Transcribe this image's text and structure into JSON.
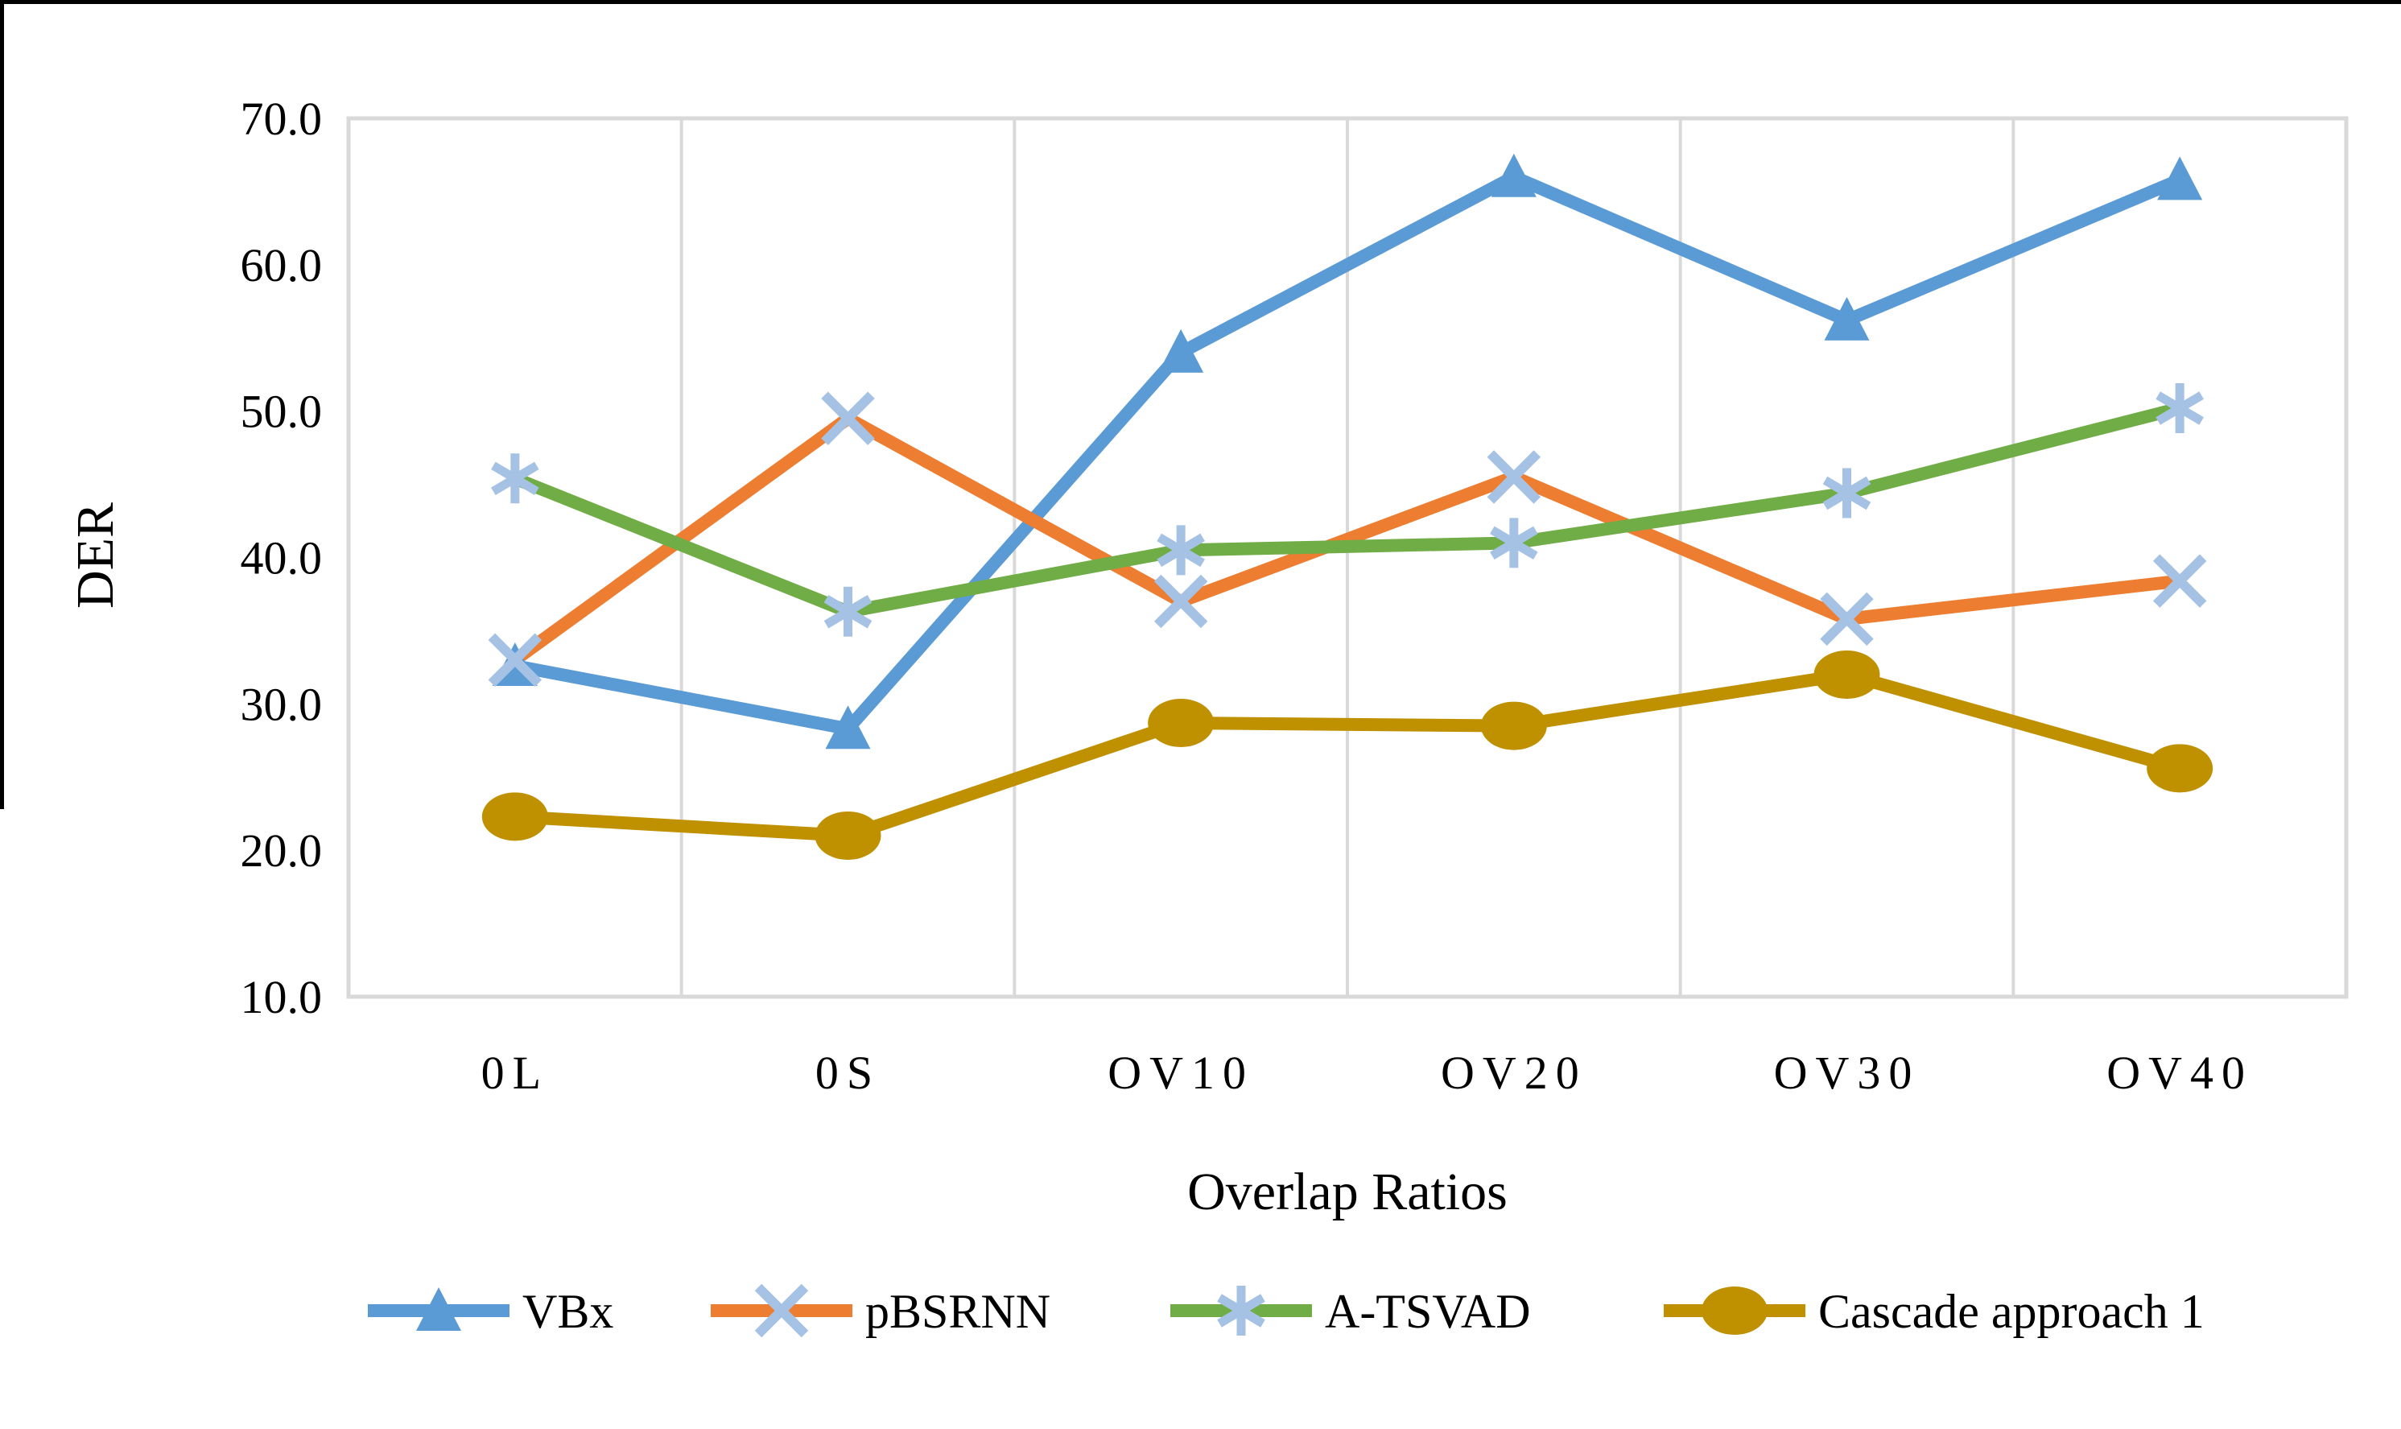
{
  "figure": {
    "background": "#FFFFFF",
    "outer_border_color": "#000000"
  },
  "chart_data": {
    "type": "line",
    "title": "",
    "xlabel": "Overlap Ratios",
    "ylabel": "DER",
    "categories": [
      "0L",
      "0S",
      "OV10",
      "OV20",
      "OV30",
      "OV40"
    ],
    "y_axis": {
      "min": 10,
      "max": 70,
      "step": 10,
      "tick_labels": [
        "70.0",
        "60.0",
        "50.0",
        "40.0",
        "30.0",
        "20.0",
        "10.0"
      ]
    },
    "grid": {
      "vertical": true,
      "horizontal": false,
      "color": "#D9D9D9",
      "frame_color": "#D9D9D9"
    },
    "legend_position": "bottom",
    "series": [
      {
        "name": "VBx",
        "color": "#5B9BD5",
        "marker": "triangle",
        "marker_color": "#5B9BD5",
        "values": [
          32.6,
          28.3,
          54.0,
          66.0,
          56.2,
          65.8
        ]
      },
      {
        "name": "pBSRNN",
        "color": "#ED7D31",
        "marker": "x",
        "marker_color": "#A5C2E4",
        "values": [
          33.0,
          49.5,
          37.0,
          45.5,
          35.8,
          38.4
        ]
      },
      {
        "name": "A-TSVAD",
        "color": "#70AD47",
        "marker": "asterisk",
        "marker_color": "#A5C2E4",
        "values": [
          45.4,
          36.3,
          40.5,
          41.0,
          44.4,
          50.2
        ]
      },
      {
        "name": "Cascade approach 1",
        "color": "#BF9000",
        "marker": "circle",
        "marker_color": "#BF9000",
        "values": [
          22.3,
          21.0,
          28.7,
          28.5,
          32.0,
          25.6
        ]
      }
    ]
  }
}
